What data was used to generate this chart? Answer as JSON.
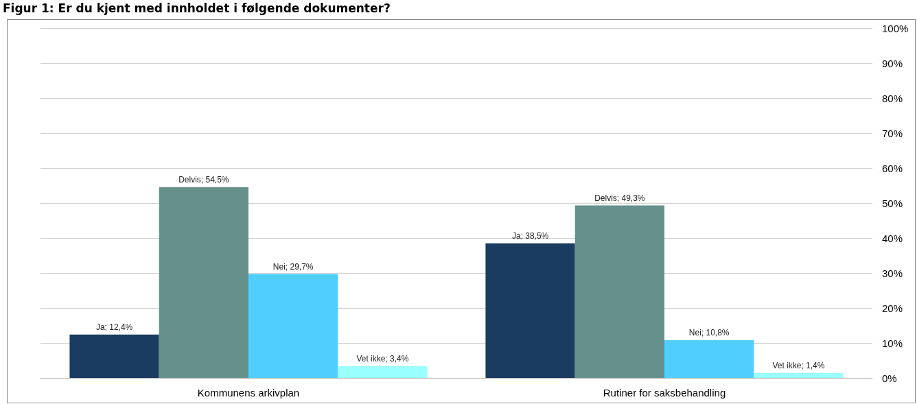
{
  "chart_data": {
    "type": "bar",
    "title": "Figur 1: Er du kjent med innholdet i følgende dokumenter?",
    "categories": [
      "Kommunens arkivplan",
      "Rutiner for saksbehandling"
    ],
    "series": [
      {
        "color": "#1a3c60",
        "values": [
          12.4,
          38.5
        ],
        "value_labels": [
          "Ja; 12,4%",
          "Ja; 38,5%"
        ]
      },
      {
        "color": "#66908c",
        "values": [
          54.5,
          49.3
        ],
        "value_labels": [
          "Delvis; 54,5%",
          "Delvis; 49,3%"
        ]
      },
      {
        "color": "#50cfff",
        "values": [
          29.7,
          10.8
        ],
        "value_labels": [
          "Nei; 29,7%",
          "Nei; 10,8%"
        ]
      },
      {
        "color": "#99ffff",
        "values": [
          3.4,
          1.4
        ],
        "value_labels": [
          "Vet ikke; 3,4%",
          "Vet ikke; 1,4%"
        ]
      }
    ],
    "ylim": [
      0,
      100
    ],
    "yticks": [
      {
        "value": 0,
        "label": "0%"
      },
      {
        "value": 10,
        "label": "10%"
      },
      {
        "value": 20,
        "label": "20%"
      },
      {
        "value": 30,
        "label": "30%"
      },
      {
        "value": 40,
        "label": "40%"
      },
      {
        "value": 50,
        "label": "50%"
      },
      {
        "value": 60,
        "label": "60%"
      },
      {
        "value": 70,
        "label": "70%"
      },
      {
        "value": 80,
        "label": "80%"
      },
      {
        "value": 90,
        "label": "90%"
      },
      {
        "value": 100,
        "label": "100%"
      }
    ],
    "grid": "y"
  }
}
